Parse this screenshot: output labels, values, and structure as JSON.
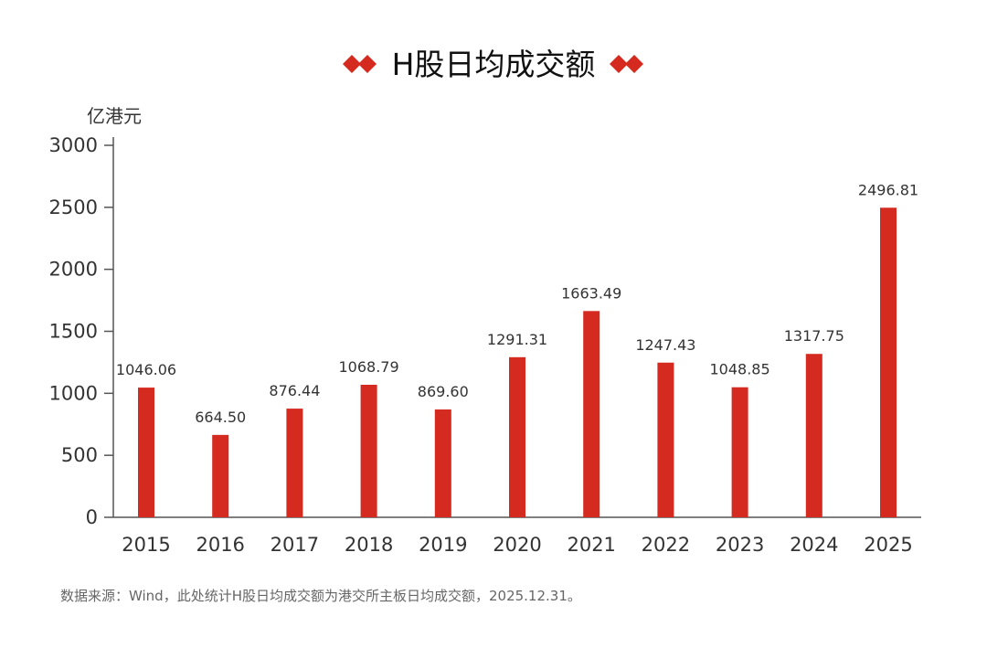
{
  "chart_data": {
    "type": "bar",
    "title": "H股日均成交额",
    "ylabel": "亿港元",
    "xlabel": "",
    "categories": [
      "2015",
      "2016",
      "2017",
      "2018",
      "2019",
      "2020",
      "2021",
      "2022",
      "2023",
      "2024",
      "2025"
    ],
    "values": [
      1046.06,
      664.5,
      876.44,
      1068.79,
      869.6,
      1291.31,
      1663.49,
      1247.43,
      1048.85,
      1317.75,
      2496.81
    ],
    "value_labels": [
      "1046.06",
      "664.50",
      "876.44",
      "1068.79",
      "869.60",
      "1291.31",
      "1663.49",
      "1247.43",
      "1048.85",
      "1317.75",
      "2496.81"
    ],
    "yticks": [
      0,
      500,
      1000,
      1500,
      2000,
      2500,
      3000
    ],
    "ylim": [
      0,
      3000
    ],
    "grid": false,
    "legend": "none",
    "bar_color": "#d42a20",
    "accent_color": "#d42a20"
  },
  "source_note": "数据来源：Wind，此处统计H股日均成交额为港交所主板日均成交额，2025.12.31。"
}
